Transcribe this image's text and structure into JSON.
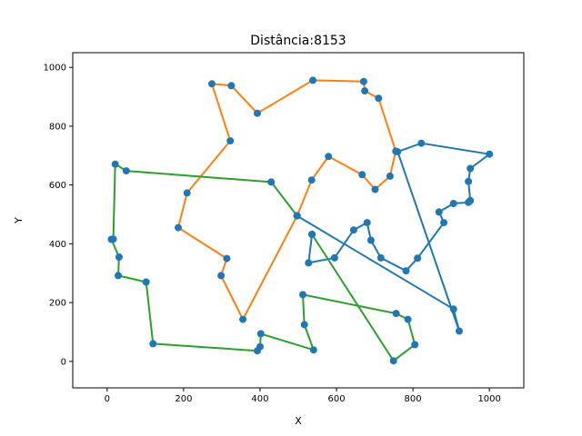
{
  "chart_data": {
    "type": "line",
    "title": "Distância:8153",
    "xlabel": "X",
    "ylabel": "Y",
    "xlim": [
      -90,
      1090
    ],
    "ylim": [
      -90,
      1050
    ],
    "xticks": [
      0,
      200,
      400,
      600,
      800,
      1000
    ],
    "yticks": [
      0,
      200,
      400,
      600,
      800,
      1000
    ],
    "grid": false,
    "legend": "none",
    "marker_color": "#1f77b4",
    "series": [
      {
        "color": "#1f77b4",
        "x": [
          497,
          906,
          921,
          760,
          822,
          1000,
          950,
          945,
          950,
          945,
          906,
          868,
          881,
          812,
          782,
          716,
          690,
          680,
          645,
          595,
          527,
          536
        ],
        "y": [
          495,
          178,
          103,
          713,
          742,
          705,
          656,
          612,
          547,
          541,
          537,
          508,
          472,
          351,
          308,
          352,
          412,
          472,
          447,
          352,
          335,
          432
        ]
      },
      {
        "color": "#ff7f0e",
        "x": [
          497,
          355,
          298,
          313,
          186,
          209,
          322,
          274,
          325,
          393,
          538,
          671,
          674,
          710,
          755,
          740,
          701,
          667,
          579,
          535,
          497
        ],
        "y": [
          495,
          143,
          292,
          350,
          455,
          573,
          750,
          944,
          938,
          844,
          956,
          952,
          920,
          895,
          715,
          630,
          585,
          635,
          697,
          617,
          495
        ]
      },
      {
        "color": "#2ca02c",
        "x": [
          536,
          749,
          805,
          787,
          756,
          512,
          516,
          540,
          402,
          400,
          393,
          120,
          102,
          29,
          31,
          11,
          16,
          21,
          50,
          429,
          497
        ],
        "y": [
          432,
          2,
          57,
          143,
          163,
          227,
          125,
          39,
          94,
          50,
          36,
          60,
          270,
          292,
          355,
          415,
          416,
          671,
          648,
          610,
          495
        ]
      }
    ]
  }
}
